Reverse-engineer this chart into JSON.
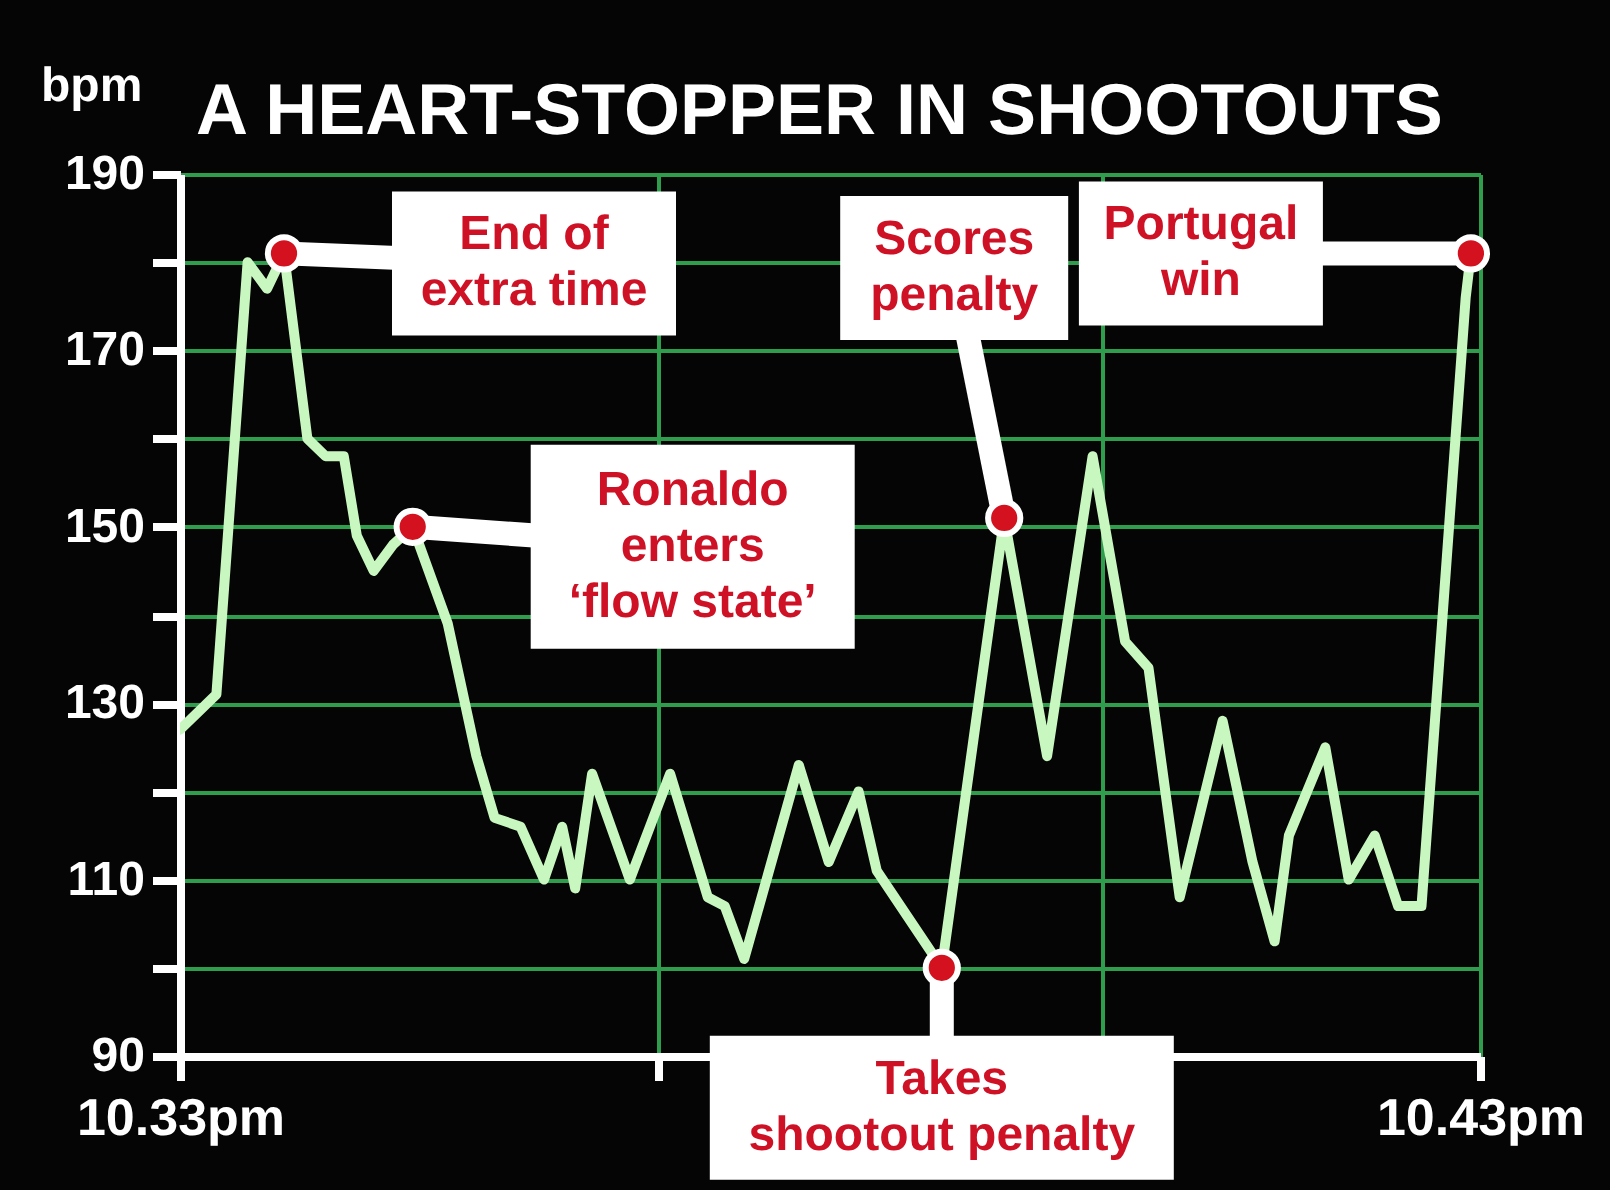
{
  "chart_data": {
    "type": "line",
    "title": "A HEART-STOPPER IN SHOOTOUTS",
    "ylabel": "bpm",
    "x": [
      10.33,
      10.3328,
      10.3352,
      10.3367,
      10.338,
      10.3398,
      10.3412,
      10.3426,
      10.3436,
      10.3449,
      10.3464,
      10.3479,
      10.3506,
      10.3528,
      10.3542,
      10.3562,
      10.358,
      10.3594,
      10.3604,
      10.3617,
      10.3646,
      10.3677,
      10.3706,
      10.3719,
      10.3734,
      10.3776,
      10.3799,
      10.3822,
      10.3836,
      10.3886,
      10.3934,
      10.3967,
      10.4002,
      10.4027,
      10.4045,
      10.4069,
      10.4102,
      10.4125,
      10.4142,
      10.4153,
      10.4181,
      10.4199,
      10.4219,
      10.4237,
      10.4255,
      10.4289,
      10.4293
    ],
    "series": [
      {
        "color": "#c9f7c0",
        "values": [
          127,
          131,
          180,
          177,
          181,
          160,
          158,
          158,
          149,
          145,
          148,
          150,
          139,
          124,
          117,
          116,
          110,
          116,
          109,
          122,
          110,
          122,
          108,
          107,
          101,
          123,
          112,
          120,
          111,
          100,
          151,
          124,
          158,
          137,
          134,
          108,
          128,
          112,
          103,
          115,
          125,
          110,
          115,
          107,
          107,
          176,
          181
        ]
      }
    ],
    "xlim": [
      10.33,
      10.43
    ],
    "xticks": [
      {
        "value": 10.33,
        "label": "10.33pm"
      },
      {
        "value": 10.3667,
        "label": null
      },
      {
        "value": 10.4009,
        "label": null
      },
      {
        "value": 10.43,
        "label": "10.43pm"
      }
    ],
    "ylim": [
      90,
      190
    ],
    "yticks": [
      90,
      {
        "value": 100,
        "label": null
      },
      110,
      {
        "value": 120,
        "label": null
      },
      130,
      {
        "value": 140,
        "label": null
      },
      150,
      {
        "value": 160,
        "label": null
      },
      170,
      {
        "value": 180,
        "label": null
      },
      190
    ],
    "grid": true,
    "marker": "none",
    "line_style": "solid",
    "annotations": [
      {
        "text": "End of extra time",
        "x": 10.338,
        "y": 181
      },
      {
        "text": "Ronaldo enters ‘flow state’",
        "x": 10.3479,
        "y": 150
      },
      {
        "text": "Takes shootout penalty",
        "x": 10.3886,
        "y": 100
      },
      {
        "text": "Scores penalty",
        "x": 10.3934,
        "y": 151
      },
      {
        "text": "Portugal win",
        "x": 10.4293,
        "y": 181
      }
    ]
  }
}
